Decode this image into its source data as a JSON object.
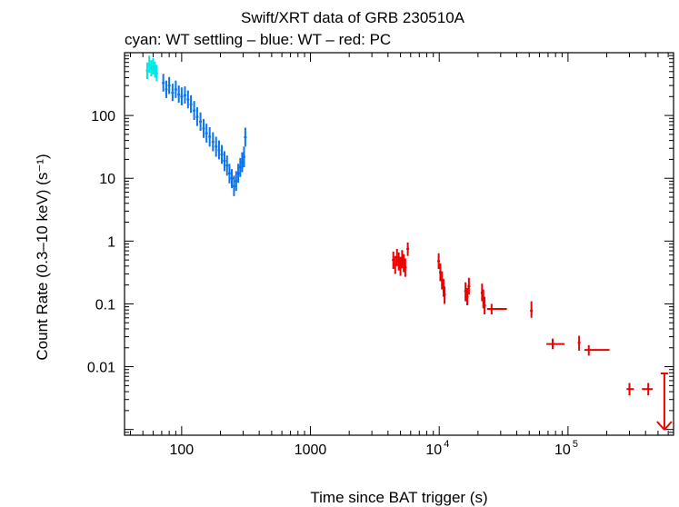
{
  "chart_data": {
    "type": "scatter",
    "title": "Swift/XRT data of GRB 230510A",
    "subtitle": "cyan: WT settling – blue: WT – red: PC",
    "xlabel": "Time since BAT trigger (s)",
    "ylabel": "Count Rate (0.3–10 keV) (s⁻¹)",
    "xscale": "log",
    "yscale": "log",
    "xlim": [
      36,
      660000
    ],
    "ylim": [
      0.00081,
      1000
    ],
    "x_ticks": [
      {
        "value": 100,
        "label": "100"
      },
      {
        "value": 1000,
        "label": "1000"
      },
      {
        "value": 10000,
        "base": "10",
        "exp": "4"
      },
      {
        "value": 100000,
        "base": "10",
        "exp": "5"
      }
    ],
    "y_ticks": [
      {
        "value": 100,
        "label": "100"
      },
      {
        "value": 10,
        "label": "10"
      },
      {
        "value": 1,
        "label": "1"
      },
      {
        "value": 0.1,
        "label": "0.1"
      },
      {
        "value": 0.01,
        "label": "0.01"
      }
    ],
    "grid": false,
    "series": [
      {
        "name": "WT settling",
        "color": "#00e5e5",
        "points": [
          {
            "x": 54,
            "y": 520,
            "ylo": 380,
            "yhi": 700
          },
          {
            "x": 56,
            "y": 640,
            "ylo": 480,
            "yhi": 900
          },
          {
            "x": 58,
            "y": 560,
            "ylo": 420,
            "yhi": 760
          },
          {
            "x": 60,
            "y": 600,
            "ylo": 450,
            "yhi": 820
          },
          {
            "x": 62,
            "y": 530,
            "ylo": 400,
            "yhi": 720
          },
          {
            "x": 64,
            "y": 470,
            "ylo": 350,
            "yhi": 640
          }
        ]
      },
      {
        "name": "WT",
        "color": "#0a74f0",
        "points": [
          {
            "x": 72,
            "y": 330,
            "ylo": 240,
            "yhi": 460
          },
          {
            "x": 76,
            "y": 260,
            "ylo": 190,
            "yhi": 360
          },
          {
            "x": 80,
            "y": 300,
            "ylo": 220,
            "yhi": 410
          },
          {
            "x": 85,
            "y": 230,
            "ylo": 170,
            "yhi": 320
          },
          {
            "x": 90,
            "y": 260,
            "ylo": 190,
            "yhi": 360
          },
          {
            "x": 95,
            "y": 215,
            "ylo": 160,
            "yhi": 300
          },
          {
            "x": 100,
            "y": 200,
            "ylo": 145,
            "yhi": 280
          },
          {
            "x": 106,
            "y": 210,
            "ylo": 155,
            "yhi": 290
          },
          {
            "x": 112,
            "y": 180,
            "ylo": 130,
            "yhi": 250
          },
          {
            "x": 118,
            "y": 150,
            "ylo": 110,
            "yhi": 210
          },
          {
            "x": 125,
            "y": 120,
            "ylo": 85,
            "yhi": 170
          },
          {
            "x": 132,
            "y": 95,
            "ylo": 68,
            "yhi": 135
          },
          {
            "x": 140,
            "y": 80,
            "ylo": 57,
            "yhi": 112
          },
          {
            "x": 148,
            "y": 62,
            "ylo": 44,
            "yhi": 88
          },
          {
            "x": 156,
            "y": 52,
            "ylo": 37,
            "yhi": 74
          },
          {
            "x": 165,
            "y": 46,
            "ylo": 32,
            "yhi": 65
          },
          {
            "x": 175,
            "y": 38,
            "ylo": 27,
            "yhi": 54
          },
          {
            "x": 185,
            "y": 32,
            "ylo": 22,
            "yhi": 46
          },
          {
            "x": 195,
            "y": 28,
            "ylo": 20,
            "yhi": 40
          },
          {
            "x": 205,
            "y": 24,
            "ylo": 17,
            "yhi": 34
          },
          {
            "x": 215,
            "y": 19,
            "ylo": 13,
            "yhi": 27
          },
          {
            "x": 225,
            "y": 16,
            "ylo": 11,
            "yhi": 23
          },
          {
            "x": 235,
            "y": 12,
            "ylo": 8.3,
            "yhi": 17
          },
          {
            "x": 245,
            "y": 10,
            "ylo": 7,
            "yhi": 14
          },
          {
            "x": 255,
            "y": 7.5,
            "ylo": 5.2,
            "yhi": 11
          },
          {
            "x": 265,
            "y": 9,
            "ylo": 6.3,
            "yhi": 13
          },
          {
            "x": 275,
            "y": 12,
            "ylo": 8.5,
            "yhi": 17
          },
          {
            "x": 285,
            "y": 15,
            "ylo": 10.5,
            "yhi": 21
          },
          {
            "x": 295,
            "y": 18,
            "ylo": 12.5,
            "yhi": 26
          },
          {
            "x": 305,
            "y": 22,
            "ylo": 15,
            "yhi": 32
          },
          {
            "x": 312,
            "y": 45,
            "ylo": 32,
            "yhi": 64
          }
        ]
      },
      {
        "name": "PC",
        "color": "#ee0000",
        "points": [
          {
            "x": 4400,
            "y": 0.5,
            "ylo": 0.36,
            "yhi": 0.68
          },
          {
            "x": 4550,
            "y": 0.42,
            "ylo": 0.3,
            "yhi": 0.58
          },
          {
            "x": 4700,
            "y": 0.55,
            "ylo": 0.4,
            "yhi": 0.75
          },
          {
            "x": 4850,
            "y": 0.48,
            "ylo": 0.34,
            "yhi": 0.66
          },
          {
            "x": 5000,
            "y": 0.4,
            "ylo": 0.28,
            "yhi": 0.56
          },
          {
            "x": 5150,
            "y": 0.52,
            "ylo": 0.37,
            "yhi": 0.72
          },
          {
            "x": 5300,
            "y": 0.45,
            "ylo": 0.32,
            "yhi": 0.62
          },
          {
            "x": 5450,
            "y": 0.38,
            "ylo": 0.27,
            "yhi": 0.53
          },
          {
            "x": 5700,
            "y": 0.75,
            "ylo": 0.58,
            "yhi": 0.95
          },
          {
            "x": 9900,
            "y": 0.48,
            "ylo": 0.36,
            "yhi": 0.64
          },
          {
            "x": 10200,
            "y": 0.32,
            "ylo": 0.23,
            "yhi": 0.44
          },
          {
            "x": 10500,
            "y": 0.24,
            "ylo": 0.17,
            "yhi": 0.33
          },
          {
            "x": 10800,
            "y": 0.18,
            "ylo": 0.13,
            "yhi": 0.25
          },
          {
            "x": 11000,
            "y": 0.14,
            "ylo": 0.1,
            "yhi": 0.19
          },
          {
            "x": 16000,
            "y": 0.16,
            "ylo": 0.11,
            "yhi": 0.22
          },
          {
            "x": 16500,
            "y": 0.13,
            "ylo": 0.095,
            "yhi": 0.18
          },
          {
            "x": 17000,
            "y": 0.19,
            "ylo": 0.14,
            "yhi": 0.26
          },
          {
            "x": 21500,
            "y": 0.15,
            "ylo": 0.11,
            "yhi": 0.21
          },
          {
            "x": 22000,
            "y": 0.12,
            "ylo": 0.085,
            "yhi": 0.17
          },
          {
            "x": 22500,
            "y": 0.095,
            "ylo": 0.068,
            "yhi": 0.13
          },
          {
            "x": 25500,
            "y": 0.083,
            "ylo": 0.068,
            "yhi": 0.1,
            "xlo": 23500,
            "xhi": 33500
          },
          {
            "x": 52000,
            "y": 0.078,
            "ylo": 0.06,
            "yhi": 0.11
          },
          {
            "x": 76000,
            "y": 0.023,
            "ylo": 0.019,
            "yhi": 0.028,
            "xlo": 68000,
            "xhi": 94000
          },
          {
            "x": 122000,
            "y": 0.024,
            "ylo": 0.018,
            "yhi": 0.031
          },
          {
            "x": 145000,
            "y": 0.0185,
            "ylo": 0.015,
            "yhi": 0.022,
            "xlo": 134000,
            "xhi": 210000
          },
          {
            "x": 300000,
            "y": 0.0044,
            "ylo": 0.0035,
            "yhi": 0.0055,
            "xlo": 285000,
            "xhi": 325000
          },
          {
            "x": 420000,
            "y": 0.0044,
            "ylo": 0.0035,
            "yhi": 0.0055,
            "xlo": 375000,
            "xhi": 455000
          },
          {
            "x": 560000,
            "y": 0.0078,
            "upper_limit": true
          }
        ]
      }
    ]
  }
}
